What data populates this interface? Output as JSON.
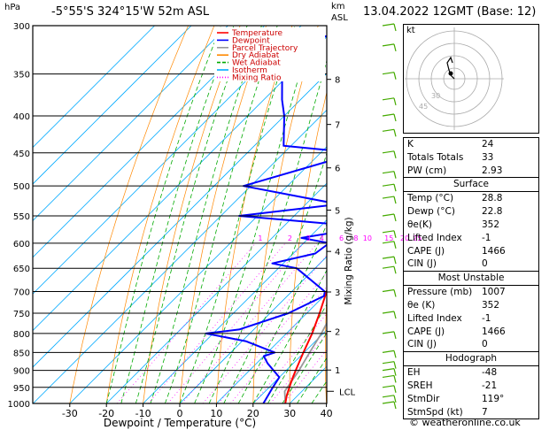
{
  "header": {
    "hpa_label": "hPa",
    "location": "-5°55'S  324°15'W  52m  ASL",
    "km_label": "km",
    "asl_label": "ASL",
    "datetime": "13.04.2022  12GMT  (Base: 12)"
  },
  "chart_data": {
    "type": "skew-t log-p",
    "xlabel": "Dewpoint / Temperature (°C)",
    "ylabel_right": "Mixing Ratio (g/kg)",
    "x_ticks": [
      -30,
      -20,
      -10,
      0,
      10,
      20,
      30,
      40
    ],
    "pressure_levels": [
      300,
      350,
      400,
      450,
      500,
      550,
      600,
      650,
      700,
      750,
      800,
      850,
      900,
      950,
      1000
    ],
    "km_ticks": [
      {
        "km": "8",
        "p": 356
      },
      {
        "km": "7",
        "p": 411
      },
      {
        "km": "6",
        "p": 472
      },
      {
        "km": "5",
        "p": 540
      },
      {
        "km": "4",
        "p": 616
      },
      {
        "km": "3",
        "p": 701
      },
      {
        "km": "2",
        "p": 795
      },
      {
        "km": "1",
        "p": 899
      }
    ],
    "lcl": {
      "label": "LCL",
      "p": 962
    },
    "mixing_ratio_labels": [
      "1",
      "2",
      "3",
      "4",
      "6",
      "8",
      "10",
      "15",
      "20",
      "25"
    ],
    "mixing_ratio_label_p": 590,
    "legend": [
      {
        "name": "Temperature",
        "color": "#ff0000"
      },
      {
        "name": "Dewpoint",
        "color": "#0000ff"
      },
      {
        "name": "Parcel Trajectory",
        "color": "#999999"
      },
      {
        "name": "Dry Adiabat",
        "color": "#ff8800"
      },
      {
        "name": "Wet Adiabat",
        "color": "#00aa00"
      },
      {
        "name": "Isotherm",
        "color": "#00aaff"
      },
      {
        "name": "Mixing Ratio",
        "color": "#ff00ff"
      }
    ],
    "temperature": [
      {
        "p": 1000,
        "t": 28.8
      },
      {
        "p": 975,
        "t": 27
      },
      {
        "p": 950,
        "t": 25.5
      },
      {
        "p": 925,
        "t": 24
      },
      {
        "p": 900,
        "t": 22.6
      },
      {
        "p": 850,
        "t": 19.8
      },
      {
        "p": 800,
        "t": 17
      },
      {
        "p": 750,
        "t": 13.5
      },
      {
        "p": 700,
        "t": 9.5
      },
      {
        "p": 650,
        "t": 5.5
      },
      {
        "p": 600,
        "t": 1.5
      },
      {
        "p": 550,
        "t": -3
      },
      {
        "p": 500,
        "t": -7
      },
      {
        "p": 450,
        "t": -12
      },
      {
        "p": 440,
        "t": -13.5
      },
      {
        "p": 420,
        "t": -14.5
      },
      {
        "p": 400,
        "t": -18
      },
      {
        "p": 350,
        "t": -25
      },
      {
        "p": 300,
        "t": -32
      }
    ],
    "dewpoint": [
      {
        "p": 1000,
        "t": 22.8
      },
      {
        "p": 950,
        "t": 21
      },
      {
        "p": 920,
        "t": 20
      },
      {
        "p": 880,
        "t": 13
      },
      {
        "p": 860,
        "t": 10
      },
      {
        "p": 850,
        "t": 12
      },
      {
        "p": 820,
        "t": 1
      },
      {
        "p": 800,
        "t": -12
      },
      {
        "p": 790,
        "t": -4
      },
      {
        "p": 750,
        "t": 5
      },
      {
        "p": 710,
        "t": 10
      },
      {
        "p": 700,
        "t": 9
      },
      {
        "p": 650,
        "t": -5
      },
      {
        "p": 640,
        "t": -13
      },
      {
        "p": 620,
        "t": -4
      },
      {
        "p": 600,
        "t": -3
      },
      {
        "p": 590,
        "t": -12
      },
      {
        "p": 570,
        "t": 3
      },
      {
        "p": 550,
        "t": -35
      },
      {
        "p": 530,
        "t": -11
      },
      {
        "p": 500,
        "t": -42
      },
      {
        "p": 450,
        "t": -20
      },
      {
        "p": 440,
        "t": -42
      },
      {
        "p": 400,
        "t": -50
      },
      {
        "p": 380,
        "t": -55
      },
      {
        "p": 350,
        "t": -62
      },
      {
        "p": 320,
        "t": -70
      },
      {
        "p": 310,
        "t": -60
      },
      {
        "p": 300,
        "t": -58
      }
    ],
    "parcel": [
      {
        "p": 1000,
        "t": 28.8
      },
      {
        "p": 962,
        "t": 25.3
      },
      {
        "p": 900,
        "t": 23.5
      },
      {
        "p": 850,
        "t": 21.5
      },
      {
        "p": 800,
        "t": 19.5
      },
      {
        "p": 700,
        "t": 14
      },
      {
        "p": 600,
        "t": 7
      },
      {
        "p": 500,
        "t": -2
      },
      {
        "p": 400,
        "t": -14
      },
      {
        "p": 350,
        "t": -22
      },
      {
        "p": 300,
        "t": -31
      }
    ]
  },
  "stats": {
    "rows1": [
      {
        "label": "K",
        "value": "24"
      },
      {
        "label": "Totals Totals",
        "value": "33"
      },
      {
        "label": "PW (cm)",
        "value": "2.93"
      }
    ],
    "surface": {
      "title": "Surface",
      "rows": [
        {
          "label": "Temp (°C)",
          "value": "28.8"
        },
        {
          "label": "Dewp (°C)",
          "value": "22.8"
        },
        {
          "label": "θe(K)",
          "value": "352"
        },
        {
          "label": "Lifted Index",
          "value": "-1"
        },
        {
          "label": "CAPE (J)",
          "value": "1466"
        },
        {
          "label": "CIN (J)",
          "value": "0"
        }
      ]
    },
    "most_unstable": {
      "title": "Most Unstable",
      "rows": [
        {
          "label": "Pressure (mb)",
          "value": "1007"
        },
        {
          "label": "θe (K)",
          "value": "352"
        },
        {
          "label": "Lifted Index",
          "value": "-1"
        },
        {
          "label": "CAPE (J)",
          "value": "1466"
        },
        {
          "label": "CIN (J)",
          "value": "0"
        }
      ]
    },
    "hodograph": {
      "title": "Hodograph",
      "rows": [
        {
          "label": "EH",
          "value": "-48"
        },
        {
          "label": "SREH",
          "value": "-21"
        },
        {
          "label": "StmDir",
          "value": "119°"
        },
        {
          "label": "StmSpd (kt)",
          "value": "7"
        }
      ]
    }
  },
  "hodo": {
    "label": "kt",
    "ring_labels": [
      "30",
      "45"
    ]
  },
  "footer": {
    "copyright": "© weatheronline.co.uk"
  }
}
